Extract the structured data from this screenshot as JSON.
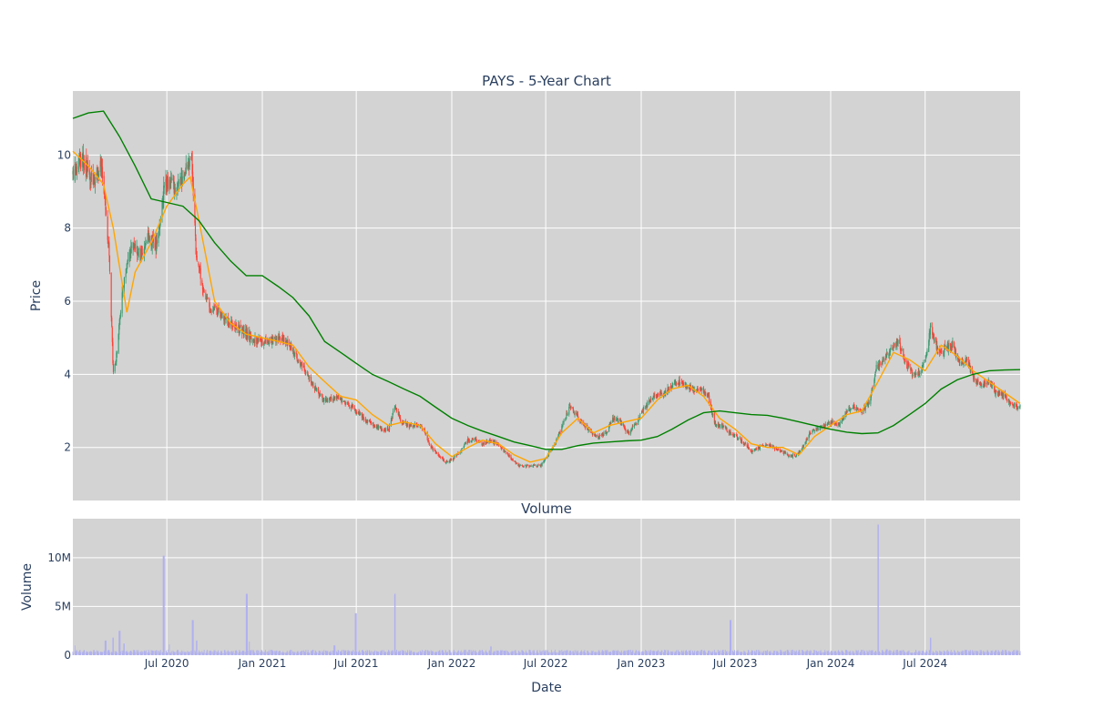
{
  "chart_data": [
    {
      "type": "candlestick",
      "title": "PAYS - 5-Year Chart",
      "ylabel": "Price",
      "ylim": [
        0.55,
        11.75
      ],
      "yticks": [
        2,
        4,
        6,
        8,
        10
      ],
      "xlim": [
        "2020-01-02",
        "2024-12-31"
      ],
      "grid": true,
      "background": "#d3d3d3",
      "up_color": "#3d9970",
      "down_color": "#ff4136",
      "price_path": [
        [
          "2020-01-02",
          9.5
        ],
        [
          "2020-01-20",
          9.9
        ],
        [
          "2020-02-10",
          9.3
        ],
        [
          "2020-02-25",
          9.7
        ],
        [
          "2020-03-05",
          8.6
        ],
        [
          "2020-03-12",
          7.2
        ],
        [
          "2020-03-20",
          4.0
        ],
        [
          "2020-03-27",
          4.6
        ],
        [
          "2020-04-06",
          6.2
        ],
        [
          "2020-04-15",
          7.0
        ],
        [
          "2020-04-28",
          7.6
        ],
        [
          "2020-05-12",
          7.2
        ],
        [
          "2020-05-26",
          7.8
        ],
        [
          "2020-06-10",
          7.5
        ],
        [
          "2020-06-18",
          8.2
        ],
        [
          "2020-06-26",
          9.2
        ],
        [
          "2020-07-08",
          9.3
        ],
        [
          "2020-07-20",
          9.0
        ],
        [
          "2020-08-04",
          9.6
        ],
        [
          "2020-08-18",
          10.0
        ],
        [
          "2020-08-26",
          7.4
        ],
        [
          "2020-09-08",
          6.4
        ],
        [
          "2020-09-22",
          5.8
        ],
        [
          "2020-10-08",
          5.7
        ],
        [
          "2020-10-26",
          5.5
        ],
        [
          "2020-11-10",
          5.3
        ],
        [
          "2020-11-24",
          5.2
        ],
        [
          "2020-12-08",
          5.0
        ],
        [
          "2020-12-22",
          4.9
        ],
        [
          "2021-01-12",
          4.9
        ],
        [
          "2021-02-01",
          5.0
        ],
        [
          "2021-02-16",
          4.9
        ],
        [
          "2021-03-03",
          4.6
        ],
        [
          "2021-03-17",
          4.3
        ],
        [
          "2021-03-31",
          3.9
        ],
        [
          "2021-04-14",
          3.6
        ],
        [
          "2021-04-28",
          3.3
        ],
        [
          "2021-05-12",
          3.3
        ],
        [
          "2021-05-26",
          3.4
        ],
        [
          "2021-06-09",
          3.2
        ],
        [
          "2021-06-24",
          3.1
        ],
        [
          "2021-07-08",
          2.9
        ],
        [
          "2021-07-22",
          2.7
        ],
        [
          "2021-08-05",
          2.6
        ],
        [
          "2021-08-19",
          2.5
        ],
        [
          "2021-09-02",
          2.5
        ],
        [
          "2021-09-13",
          3.1
        ],
        [
          "2021-09-27",
          2.7
        ],
        [
          "2021-10-11",
          2.6
        ],
        [
          "2021-10-25",
          2.6
        ],
        [
          "2021-11-08",
          2.5
        ],
        [
          "2021-11-22",
          2.0
        ],
        [
          "2021-12-06",
          1.8
        ],
        [
          "2021-12-20",
          1.6
        ],
        [
          "2022-01-04",
          1.7
        ],
        [
          "2022-01-18",
          1.9
        ],
        [
          "2022-02-01",
          2.2
        ],
        [
          "2022-02-15",
          2.2
        ],
        [
          "2022-03-01",
          2.1
        ],
        [
          "2022-03-15",
          2.2
        ],
        [
          "2022-03-29",
          2.1
        ],
        [
          "2022-04-12",
          1.9
        ],
        [
          "2022-04-26",
          1.7
        ],
        [
          "2022-05-10",
          1.5
        ],
        [
          "2022-05-24",
          1.5
        ],
        [
          "2022-06-07",
          1.5
        ],
        [
          "2022-06-21",
          1.5
        ],
        [
          "2022-07-05",
          1.8
        ],
        [
          "2022-07-19",
          2.1
        ],
        [
          "2022-08-02",
          2.6
        ],
        [
          "2022-08-16",
          3.1
        ],
        [
          "2022-08-30",
          2.9
        ],
        [
          "2022-09-13",
          2.6
        ],
        [
          "2022-09-27",
          2.4
        ],
        [
          "2022-10-11",
          2.3
        ],
        [
          "2022-10-25",
          2.4
        ],
        [
          "2022-11-08",
          2.8
        ],
        [
          "2022-11-22",
          2.7
        ],
        [
          "2022-12-06",
          2.4
        ],
        [
          "2022-12-20",
          2.6
        ],
        [
          "2023-01-04",
          3.0
        ],
        [
          "2023-01-18",
          3.3
        ],
        [
          "2023-02-01",
          3.4
        ],
        [
          "2023-02-15",
          3.5
        ],
        [
          "2023-03-01",
          3.7
        ],
        [
          "2023-03-15",
          3.8
        ],
        [
          "2023-03-29",
          3.7
        ],
        [
          "2023-04-12",
          3.6
        ],
        [
          "2023-04-26",
          3.6
        ],
        [
          "2023-05-10",
          3.4
        ],
        [
          "2023-05-24",
          2.6
        ],
        [
          "2023-06-07",
          2.6
        ],
        [
          "2023-06-21",
          2.4
        ],
        [
          "2023-07-05",
          2.3
        ],
        [
          "2023-07-19",
          2.1
        ],
        [
          "2023-08-02",
          1.9
        ],
        [
          "2023-08-16",
          2.0
        ],
        [
          "2023-08-30",
          2.1
        ],
        [
          "2023-09-13",
          2.0
        ],
        [
          "2023-09-27",
          1.9
        ],
        [
          "2023-10-11",
          1.8
        ],
        [
          "2023-10-25",
          1.75
        ],
        [
          "2023-11-08",
          2.0
        ],
        [
          "2023-11-22",
          2.4
        ],
        [
          "2023-12-06",
          2.5
        ],
        [
          "2023-12-20",
          2.6
        ],
        [
          "2024-01-04",
          2.7
        ],
        [
          "2024-01-18",
          2.6
        ],
        [
          "2024-02-01",
          3.0
        ],
        [
          "2024-02-15",
          3.1
        ],
        [
          "2024-03-01",
          3.0
        ],
        [
          "2024-03-15",
          3.2
        ],
        [
          "2024-03-29",
          4.2
        ],
        [
          "2024-04-12",
          4.4
        ],
        [
          "2024-04-26",
          4.7
        ],
        [
          "2024-05-10",
          4.9
        ],
        [
          "2024-05-24",
          4.3
        ],
        [
          "2024-06-07",
          4.0
        ],
        [
          "2024-06-21",
          4.0
        ],
        [
          "2024-07-03",
          4.6
        ],
        [
          "2024-07-12",
          5.3
        ],
        [
          "2024-07-26",
          4.6
        ],
        [
          "2024-08-09",
          4.7
        ],
        [
          "2024-08-23",
          4.8
        ],
        [
          "2024-09-06",
          4.3
        ],
        [
          "2024-09-20",
          4.4
        ],
        [
          "2024-10-04",
          3.8
        ],
        [
          "2024-10-18",
          3.7
        ],
        [
          "2024-11-01",
          3.8
        ],
        [
          "2024-11-15",
          3.5
        ],
        [
          "2024-11-29",
          3.4
        ],
        [
          "2024-12-13",
          3.2
        ],
        [
          "2024-12-31",
          3.1
        ]
      ],
      "overlays": [
        {
          "color": "#ffa500",
          "points": [
            [
              "2020-01-02",
              10.1
            ],
            [
              "2020-02-01",
              9.7
            ],
            [
              "2020-03-01",
              9.2
            ],
            [
              "2020-03-20",
              8.0
            ],
            [
              "2020-04-15",
              5.7
            ],
            [
              "2020-05-01",
              6.8
            ],
            [
              "2020-06-01",
              7.6
            ],
            [
              "2020-07-01",
              8.6
            ],
            [
              "2020-08-01",
              9.2
            ],
            [
              "2020-08-15",
              9.4
            ],
            [
              "2020-09-01",
              8.2
            ],
            [
              "2020-10-01",
              6.0
            ],
            [
              "2020-11-01",
              5.4
            ],
            [
              "2020-12-01",
              5.1
            ],
            [
              "2021-01-01",
              5.0
            ],
            [
              "2021-02-01",
              4.9
            ],
            [
              "2021-03-01",
              4.8
            ],
            [
              "2021-04-01",
              4.2
            ],
            [
              "2021-05-01",
              3.8
            ],
            [
              "2021-06-01",
              3.4
            ],
            [
              "2021-07-01",
              3.3
            ],
            [
              "2021-08-01",
              2.9
            ],
            [
              "2021-09-01",
              2.6
            ],
            [
              "2021-10-01",
              2.7
            ],
            [
              "2021-11-01",
              2.6
            ],
            [
              "2021-12-01",
              2.1
            ],
            [
              "2022-01-01",
              1.75
            ],
            [
              "2022-02-01",
              2.0
            ],
            [
              "2022-03-01",
              2.2
            ],
            [
              "2022-04-01",
              2.1
            ],
            [
              "2022-05-01",
              1.8
            ],
            [
              "2022-06-01",
              1.6
            ],
            [
              "2022-07-01",
              1.7
            ],
            [
              "2022-08-01",
              2.4
            ],
            [
              "2022-09-01",
              2.8
            ],
            [
              "2022-10-01",
              2.4
            ],
            [
              "2022-11-01",
              2.6
            ],
            [
              "2022-12-01",
              2.7
            ],
            [
              "2023-01-01",
              2.8
            ],
            [
              "2023-02-01",
              3.3
            ],
            [
              "2023-03-01",
              3.6
            ],
            [
              "2023-04-01",
              3.7
            ],
            [
              "2023-05-01",
              3.4
            ],
            [
              "2023-06-01",
              2.8
            ],
            [
              "2023-07-01",
              2.5
            ],
            [
              "2023-08-01",
              2.1
            ],
            [
              "2023-09-01",
              2.0
            ],
            [
              "2023-10-01",
              2.0
            ],
            [
              "2023-11-01",
              1.8
            ],
            [
              "2023-12-01",
              2.3
            ],
            [
              "2024-01-01",
              2.6
            ],
            [
              "2024-02-01",
              2.9
            ],
            [
              "2024-03-01",
              3.0
            ],
            [
              "2024-04-01",
              3.8
            ],
            [
              "2024-05-01",
              4.6
            ],
            [
              "2024-06-01",
              4.4
            ],
            [
              "2024-07-01",
              4.1
            ],
            [
              "2024-08-01",
              4.8
            ],
            [
              "2024-09-01",
              4.5
            ],
            [
              "2024-10-01",
              4.1
            ],
            [
              "2024-11-01",
              3.8
            ],
            [
              "2024-12-01",
              3.5
            ],
            [
              "2024-12-31",
              3.2
            ]
          ]
        },
        {
          "color": "#008000",
          "points": [
            [
              "2020-01-02",
              11.0
            ],
            [
              "2020-02-01",
              11.15
            ],
            [
              "2020-03-01",
              11.2
            ],
            [
              "2020-04-01",
              10.5
            ],
            [
              "2020-05-01",
              9.7
            ],
            [
              "2020-06-01",
              8.8
            ],
            [
              "2020-07-01",
              8.7
            ],
            [
              "2020-08-01",
              8.6
            ],
            [
              "2020-09-01",
              8.2
            ],
            [
              "2020-10-01",
              7.6
            ],
            [
              "2020-11-01",
              7.1
            ],
            [
              "2020-12-01",
              6.7
            ],
            [
              "2021-01-01",
              6.7
            ],
            [
              "2021-02-01",
              6.4
            ],
            [
              "2021-03-01",
              6.1
            ],
            [
              "2021-04-01",
              5.6
            ],
            [
              "2021-05-01",
              4.9
            ],
            [
              "2021-06-01",
              4.6
            ],
            [
              "2021-07-01",
              4.3
            ],
            [
              "2021-08-01",
              4.0
            ],
            [
              "2021-09-01",
              3.8
            ],
            [
              "2021-10-01",
              3.6
            ],
            [
              "2021-11-01",
              3.4
            ],
            [
              "2021-12-01",
              3.1
            ],
            [
              "2022-01-01",
              2.8
            ],
            [
              "2022-02-01",
              2.6
            ],
            [
              "2022-03-01",
              2.45
            ],
            [
              "2022-04-01",
              2.3
            ],
            [
              "2022-05-01",
              2.15
            ],
            [
              "2022-06-01",
              2.05
            ],
            [
              "2022-07-01",
              1.95
            ],
            [
              "2022-08-01",
              1.95
            ],
            [
              "2022-09-01",
              2.05
            ],
            [
              "2022-10-01",
              2.12
            ],
            [
              "2022-11-01",
              2.15
            ],
            [
              "2022-12-01",
              2.18
            ],
            [
              "2023-01-01",
              2.2
            ],
            [
              "2023-02-01",
              2.3
            ],
            [
              "2023-03-01",
              2.5
            ],
            [
              "2023-04-01",
              2.75
            ],
            [
              "2023-05-01",
              2.95
            ],
            [
              "2023-06-01",
              3.0
            ],
            [
              "2023-07-01",
              2.95
            ],
            [
              "2023-08-01",
              2.9
            ],
            [
              "2023-09-01",
              2.88
            ],
            [
              "2023-10-01",
              2.8
            ],
            [
              "2023-11-01",
              2.7
            ],
            [
              "2023-12-01",
              2.6
            ],
            [
              "2024-01-01",
              2.5
            ],
            [
              "2024-02-01",
              2.42
            ],
            [
              "2024-03-01",
              2.38
            ],
            [
              "2024-04-01",
              2.4
            ],
            [
              "2024-05-01",
              2.6
            ],
            [
              "2024-06-01",
              2.9
            ],
            [
              "2024-07-01",
              3.2
            ],
            [
              "2024-08-01",
              3.6
            ],
            [
              "2024-09-01",
              3.85
            ],
            [
              "2024-10-01",
              4.0
            ],
            [
              "2024-11-01",
              4.1
            ],
            [
              "2024-12-01",
              4.12
            ],
            [
              "2024-12-31",
              4.13
            ]
          ]
        }
      ]
    },
    {
      "type": "bar",
      "title": "Volume",
      "xlabel": "Date",
      "ylabel": "Volume",
      "ylim": [
        0,
        14000000
      ],
      "yticks": [
        0,
        5000000,
        10000000
      ],
      "yticklabels": [
        "0",
        "5M",
        "10M"
      ],
      "xticks": [
        "2020-07-01",
        "2021-01-01",
        "2021-07-01",
        "2022-01-01",
        "2022-07-01",
        "2023-01-01",
        "2023-07-01",
        "2024-01-01",
        "2024-07-01"
      ],
      "xticklabels": [
        "Jul 2020",
        "Jan 2021",
        "Jul 2021",
        "Jan 2022",
        "Jul 2022",
        "Jan 2023",
        "Jul 2023",
        "Jan 2024",
        "Jul 2024"
      ],
      "grid": true,
      "background": "#d3d3d3",
      "bar_color": "#b0b0f0",
      "baseline_volume": 400000,
      "spikes": [
        [
          "2020-01-05",
          1000000
        ],
        [
          "2020-03-05",
          1500000
        ],
        [
          "2020-03-20",
          1800000
        ],
        [
          "2020-04-01",
          2500000
        ],
        [
          "2020-04-10",
          1200000
        ],
        [
          "2020-06-25",
          10200000
        ],
        [
          "2020-07-05",
          1100000
        ],
        [
          "2020-08-20",
          3600000
        ],
        [
          "2020-08-28",
          1500000
        ],
        [
          "2020-12-02",
          6300000
        ],
        [
          "2020-12-06",
          1400000
        ],
        [
          "2021-05-20",
          1000000
        ],
        [
          "2021-06-30",
          4300000
        ],
        [
          "2021-09-13",
          6300000
        ],
        [
          "2022-03-18",
          900000
        ],
        [
          "2023-06-22",
          3600000
        ],
        [
          "2024-04-01",
          13400000
        ],
        [
          "2024-04-18",
          600000
        ],
        [
          "2024-07-12",
          1800000
        ]
      ]
    }
  ]
}
